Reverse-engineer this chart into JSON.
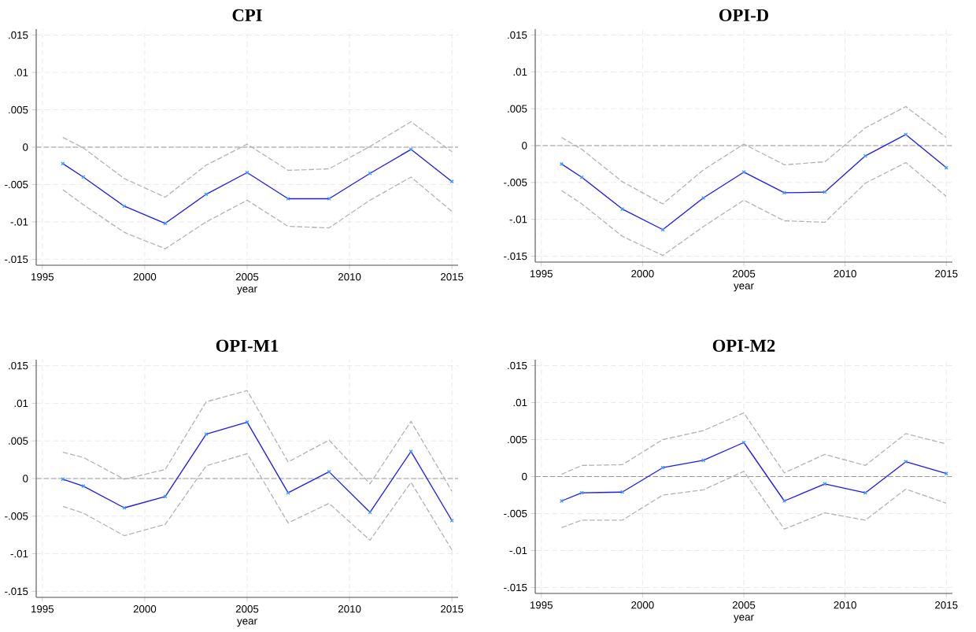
{
  "chart_data": [
    {
      "type": "line",
      "title": "CPI",
      "xlabel": "year",
      "x": [
        1996,
        1997,
        1999,
        2001,
        2003,
        2005,
        2007,
        2009,
        2011,
        2013,
        2015
      ],
      "xlim": [
        1994.7,
        2015.3
      ],
      "ylim": [
        -0.0158,
        0.0158
      ],
      "xticks": [
        1995,
        2000,
        2005,
        2010,
        2015
      ],
      "yticks": [
        {
          "value": -0.015,
          "label": "-.015"
        },
        {
          "value": -0.01,
          "label": "-.01"
        },
        {
          "value": -0.005,
          "label": "-.005"
        },
        0,
        {
          "value": 0.005,
          "label": ".005"
        },
        {
          "value": 0.01,
          "label": ".01"
        },
        {
          "value": 0.015,
          "label": ".015"
        }
      ],
      "grid": true,
      "ref_lines": [
        {
          "axis": "y",
          "value": 0,
          "color": "#999999",
          "line_style": "dashed"
        }
      ],
      "series": [
        {
          "color": "#b4b4b4",
          "line_style": "dashed",
          "marker": "none",
          "values": [
            0.0013,
            -0.0001,
            -0.0042,
            -0.0067,
            -0.0024,
            0.0004,
            -0.0031,
            -0.0029,
            0.0001,
            0.0034,
            -0.0006
          ]
        },
        {
          "color": "#b4b4b4",
          "line_style": "dashed",
          "marker": "none",
          "values": [
            -0.0057,
            -0.0077,
            -0.0114,
            -0.0136,
            -0.01,
            -0.0071,
            -0.0106,
            -0.0108,
            -0.0071,
            -0.004,
            -0.0086
          ]
        },
        {
          "color": "#1a1aff",
          "line_style": "solid",
          "marker": "cross",
          "values": [
            -0.0022,
            -0.004,
            -0.0079,
            -0.0102,
            -0.0063,
            -0.0034,
            -0.0069,
            -0.0069,
            -0.0035,
            -0.0003,
            -0.0046
          ]
        }
      ]
    },
    {
      "type": "line",
      "title": "OPI-D",
      "xlabel": "year",
      "x": [
        1996,
        1997,
        1999,
        2001,
        2003,
        2005,
        2007,
        2009,
        2011,
        2013,
        2015
      ],
      "xlim": [
        1994.7,
        2015.3
      ],
      "ylim": [
        -0.0158,
        0.0158
      ],
      "xticks": [
        1995,
        2000,
        2005,
        2010,
        2015
      ],
      "yticks": [
        {
          "value": -0.015,
          "label": "-.015"
        },
        {
          "value": -0.01,
          "label": "-.01"
        },
        {
          "value": -0.005,
          "label": "-.005"
        },
        0,
        {
          "value": 0.005,
          "label": ".005"
        },
        {
          "value": 0.01,
          "label": ".01"
        },
        {
          "value": 0.015,
          "label": ".015"
        }
      ],
      "grid": true,
      "ref_lines": [
        {
          "axis": "y",
          "value": 0,
          "color": "#999999",
          "line_style": "dashed"
        }
      ],
      "series": [
        {
          "color": "#b4b4b4",
          "line_style": "dashed",
          "marker": "none",
          "values": [
            0.0011,
            -0.0005,
            -0.0049,
            -0.0079,
            -0.0033,
            0.0002,
            -0.0026,
            -0.0022,
            0.0024,
            0.0053,
            0.0011
          ]
        },
        {
          "color": "#b4b4b4",
          "line_style": "dashed",
          "marker": "none",
          "values": [
            -0.0061,
            -0.0079,
            -0.0123,
            -0.0149,
            -0.011,
            -0.0074,
            -0.0102,
            -0.0104,
            -0.0051,
            -0.0023,
            -0.0069
          ]
        },
        {
          "color": "#1a1aff",
          "line_style": "solid",
          "marker": "cross",
          "values": [
            -0.0025,
            -0.0043,
            -0.0086,
            -0.0114,
            -0.0071,
            -0.0036,
            -0.0064,
            -0.0063,
            -0.0014,
            0.0015,
            -0.003
          ]
        }
      ]
    },
    {
      "type": "line",
      "title": "OPI-M1",
      "xlabel": "year",
      "x": [
        1996,
        1997,
        1999,
        2001,
        2003,
        2005,
        2007,
        2009,
        2011,
        2013,
        2015
      ],
      "xlim": [
        1994.7,
        2015.3
      ],
      "ylim": [
        -0.0158,
        0.0158
      ],
      "xticks": [
        1995,
        2000,
        2005,
        2010,
        2015
      ],
      "yticks": [
        {
          "value": -0.015,
          "label": "-.015"
        },
        {
          "value": -0.01,
          "label": "-.01"
        },
        {
          "value": -0.005,
          "label": "-.005"
        },
        0,
        {
          "value": 0.005,
          "label": ".005"
        },
        {
          "value": 0.01,
          "label": ".01"
        },
        {
          "value": 0.015,
          "label": ".015"
        }
      ],
      "grid": true,
      "ref_lines": [
        {
          "axis": "y",
          "value": 0,
          "color": "#999999",
          "line_style": "dashed"
        }
      ],
      "series": [
        {
          "color": "#b4b4b4",
          "line_style": "dashed",
          "marker": "none",
          "values": [
            0.0035,
            0.0028,
            -0.0001,
            0.0012,
            0.0102,
            0.0117,
            0.0022,
            0.0051,
            -0.0007,
            0.0076,
            -0.0017
          ]
        },
        {
          "color": "#b4b4b4",
          "line_style": "dashed",
          "marker": "none",
          "values": [
            -0.0037,
            -0.0046,
            -0.0076,
            -0.0061,
            0.0017,
            0.0033,
            -0.0059,
            -0.0033,
            -0.0082,
            -0.0005,
            -0.0095
          ]
        },
        {
          "color": "#1a1aff",
          "line_style": "solid",
          "marker": "cross",
          "values": [
            -0.0001,
            -0.001,
            -0.0039,
            -0.0024,
            0.0059,
            0.0075,
            -0.0019,
            0.0009,
            -0.0045,
            0.0036,
            -0.0056
          ]
        }
      ]
    },
    {
      "type": "line",
      "title": "OPI-M2",
      "xlabel": "year",
      "x": [
        1996,
        1997,
        1999,
        2001,
        2003,
        2005,
        2007,
        2009,
        2011,
        2013,
        2015
      ],
      "xlim": [
        1994.7,
        2015.3
      ],
      "ylim": [
        -0.0158,
        0.0158
      ],
      "xticks": [
        1995,
        2000,
        2005,
        2010,
        2015
      ],
      "yticks": [
        {
          "value": -0.015,
          "label": "-.015"
        },
        {
          "value": -0.01,
          "label": "-.01"
        },
        {
          "value": -0.005,
          "label": "-.005"
        },
        0,
        {
          "value": 0.005,
          "label": ".005"
        },
        {
          "value": 0.01,
          "label": ".01"
        },
        {
          "value": 0.015,
          "label": ".015"
        }
      ],
      "grid": true,
      "ref_lines": [
        {
          "axis": "y",
          "value": 0,
          "color": "#999999",
          "line_style": "dashed"
        }
      ],
      "series": [
        {
          "color": "#b4b4b4",
          "line_style": "dashed",
          "marker": "none",
          "values": [
            0.0003,
            0.0015,
            0.0016,
            0.005,
            0.0062,
            0.0086,
            0.0005,
            0.003,
            0.0015,
            0.0058,
            0.0044
          ]
        },
        {
          "color": "#b4b4b4",
          "line_style": "dashed",
          "marker": "none",
          "values": [
            -0.0069,
            -0.0059,
            -0.0059,
            -0.0025,
            -0.0018,
            0.0007,
            -0.0071,
            -0.0049,
            -0.0059,
            -0.0017,
            -0.0036
          ]
        },
        {
          "color": "#1a1aff",
          "line_style": "solid",
          "marker": "cross",
          "values": [
            -0.0033,
            -0.0022,
            -0.0021,
            0.0012,
            0.0022,
            0.0046,
            -0.0033,
            -0.001,
            -0.0022,
            0.002,
            0.0004
          ]
        }
      ]
    }
  ]
}
